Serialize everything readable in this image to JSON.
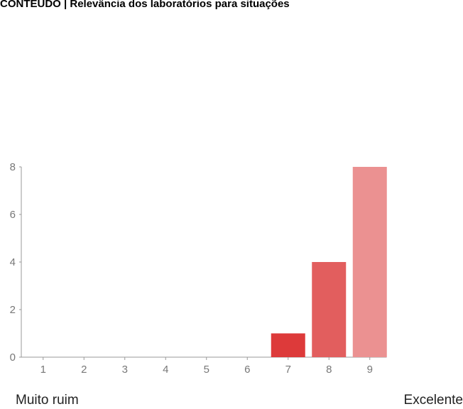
{
  "chart_data": {
    "type": "bar",
    "title": "CONTEÚDO | Relevância dos laboratórios para situações",
    "categories": [
      "1",
      "2",
      "3",
      "4",
      "5",
      "6",
      "7",
      "8",
      "9"
    ],
    "values": [
      0,
      0,
      0,
      0,
      0,
      0,
      1,
      4,
      8
    ],
    "ylim": [
      0,
      8
    ],
    "yticks": [
      "0",
      "2",
      "4",
      "6",
      "8"
    ],
    "xlabel": "",
    "ylabel": "",
    "bar_colors": [
      "#dc3912",
      "#dc3912",
      "#dc3912",
      "#dc3912",
      "#dc3912",
      "#dc3912",
      "#dd3a3a",
      "#e25e5e",
      "#eb9191"
    ],
    "grid": false,
    "legend": "none"
  },
  "scale": {
    "low_label": "Muito ruim",
    "high_label": "Excelente"
  }
}
